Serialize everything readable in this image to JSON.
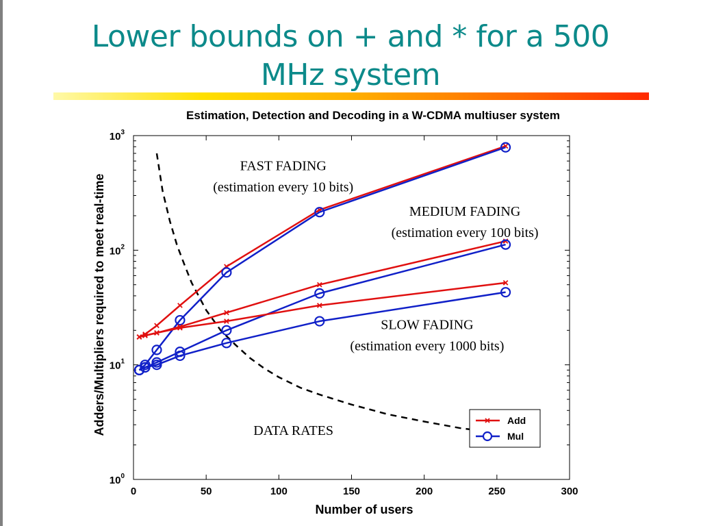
{
  "slide": {
    "title_line1": "Lower bounds on + and * for a 500",
    "title_line2": "MHz system"
  },
  "colors": {
    "title": "#0c8a8a",
    "add_series": "#e01010",
    "mul_series": "#1020c8",
    "data_rates": "#000000"
  },
  "chart_data": {
    "type": "line",
    "title": "Estimation, Detection and Decoding in a W-CDMA multiuser system",
    "xlabel": "Number of users",
    "ylabel": "Adders/Multipliers required to meet real-time",
    "xlim": [
      0,
      300
    ],
    "ylim": [
      1,
      1000
    ],
    "yscale": "log",
    "xticks": [
      "0",
      "50",
      "100",
      "150",
      "200",
      "250",
      "300"
    ],
    "yticks": [
      {
        "value": 1,
        "base": "10",
        "exp": "0"
      },
      {
        "value": 10,
        "base": "10",
        "exp": "1"
      },
      {
        "value": 100,
        "base": "10",
        "exp": "2"
      },
      {
        "value": 1000,
        "base": "10",
        "exp": "3"
      }
    ],
    "grid": false,
    "legend": {
      "placement": "lower-right",
      "entries": [
        {
          "label": "Add",
          "marker": "x",
          "color": "#e01010"
        },
        {
          "label": "Mul",
          "marker": "o",
          "color": "#1020c8"
        }
      ]
    },
    "series": [
      {
        "group": "fast",
        "kind": "Add",
        "color": "#e01010",
        "marker": "x",
        "x": [
          4,
          8,
          16,
          32,
          64,
          128,
          256
        ],
        "y": [
          17.5,
          18.5,
          22,
          33,
          72,
          225,
          810
        ]
      },
      {
        "group": "fast",
        "kind": "Mul",
        "color": "#1020c8",
        "marker": "o",
        "x": [
          4,
          8,
          16,
          32,
          64,
          128,
          256
        ],
        "y": [
          9,
          10,
          13.5,
          24.5,
          64,
          215,
          790
        ]
      },
      {
        "group": "medium",
        "kind": "Add",
        "color": "#e01010",
        "marker": "x",
        "x": [
          4,
          8,
          16,
          32,
          64,
          128,
          256
        ],
        "y": [
          17.5,
          18,
          19,
          21.5,
          28.5,
          50,
          120
        ]
      },
      {
        "group": "medium",
        "kind": "Mul",
        "color": "#1020c8",
        "marker": "o",
        "x": [
          4,
          8,
          16,
          32,
          64,
          128,
          256
        ],
        "y": [
          9,
          9.5,
          10.5,
          13,
          20,
          42,
          112
        ]
      },
      {
        "group": "slow",
        "kind": "Add",
        "color": "#e01010",
        "marker": "x",
        "x": [
          4,
          8,
          16,
          32,
          64,
          128,
          256
        ],
        "y": [
          17.5,
          18,
          19,
          21,
          24,
          33,
          52
        ]
      },
      {
        "group": "slow",
        "kind": "Mul",
        "color": "#1020c8",
        "marker": "o",
        "x": [
          4,
          8,
          16,
          32,
          64,
          128,
          256
        ],
        "y": [
          9,
          9.5,
          10,
          12,
          15.5,
          24,
          43
        ]
      }
    ],
    "data_rates_curve": {
      "style": "dashed",
      "color": "#000000",
      "x": [
        16,
        20,
        25,
        30,
        35,
        40,
        50,
        60,
        70,
        80,
        90,
        100,
        115,
        128,
        150,
        175,
        200,
        225,
        245
      ],
      "y": [
        700,
        330,
        180,
        110,
        75,
        52,
        30,
        20,
        15,
        11.5,
        9.3,
        7.8,
        6.3,
        5.5,
        4.5,
        3.7,
        3.2,
        2.8,
        2.6
      ]
    },
    "annotations": [
      {
        "id": "fast",
        "line1": "FAST FADING",
        "line2": "(estimation every 10 bits)",
        "x": 103,
        "y": 500
      },
      {
        "id": "medium",
        "line1": "MEDIUM FADING",
        "line2": "(estimation every 100 bits)",
        "x": 228,
        "y": 200
      },
      {
        "id": "slow",
        "line1": "SLOW FADING",
        "line2": "(estimation every 1000 bits)",
        "x": 202,
        "y": 20.5
      },
      {
        "id": "data-rates",
        "line1": "DATA RATES",
        "x": 110,
        "y": 2.45
      }
    ]
  }
}
